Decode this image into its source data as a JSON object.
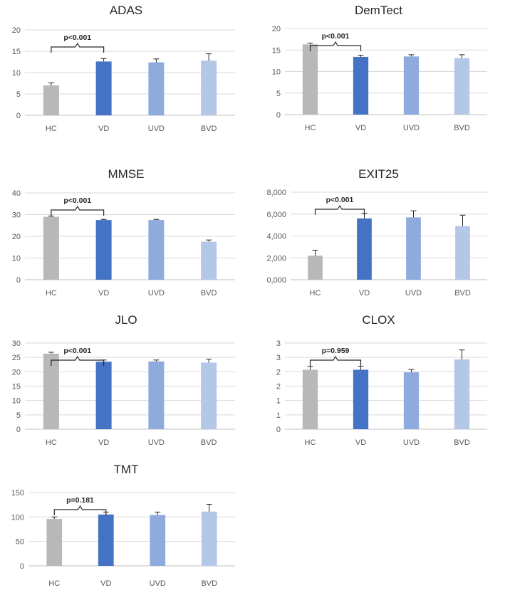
{
  "colors": {
    "HC": "#b8b8b8",
    "VD": "#4472c4",
    "UVD": "#8faadc",
    "BVD": "#b4c7e7"
  },
  "chart_data": [
    {
      "id": "adas",
      "type": "bar",
      "title": "ADAS",
      "categories": [
        "HC",
        "VD",
        "UVD",
        "BVD"
      ],
      "values": [
        7,
        12.6,
        12.4,
        12.8
      ],
      "errors": [
        0.6,
        0.7,
        0.8,
        1.6
      ],
      "ylim": [
        0,
        20
      ],
      "yticks": [
        "0",
        "5",
        "10",
        "15",
        "20"
      ],
      "annotation": "p<0.001",
      "grid": true,
      "xlabel": "",
      "ylabel": ""
    },
    {
      "id": "demtect",
      "type": "bar",
      "title": "DemTect",
      "categories": [
        "HC",
        "VD",
        "UVD",
        "BVD"
      ],
      "values": [
        16.3,
        13.4,
        13.5,
        13.1
      ],
      "errors": [
        0.3,
        0.4,
        0.4,
        0.8
      ],
      "ylim": [
        0,
        20
      ],
      "yticks": [
        "0",
        "5",
        "10",
        "15",
        "20"
      ],
      "annotation": "p<0.001",
      "grid": true,
      "xlabel": "",
      "ylabel": ""
    },
    {
      "id": "mmse",
      "type": "bar",
      "title": "MMSE",
      "categories": [
        "HC",
        "VD",
        "UVD",
        "BVD"
      ],
      "values": [
        29,
        27.5,
        27.5,
        17.5
      ],
      "errors": [
        0.3,
        0.3,
        0.3,
        0.8
      ],
      "ylim": [
        0,
        40
      ],
      "yticks": [
        "0",
        "10",
        "20",
        "30",
        "40"
      ],
      "annotation": "p<0.001",
      "grid": true,
      "xlabel": "",
      "ylabel": ""
    },
    {
      "id": "exit25",
      "type": "bar",
      "title": "EXIT25",
      "categories": [
        "HC",
        "VD",
        "UVD",
        "BVD"
      ],
      "values": [
        2.2,
        5.6,
        5.7,
        4.9
      ],
      "errors": [
        0.5,
        0.45,
        0.6,
        1.0
      ],
      "ylim": [
        0,
        8
      ],
      "yticks": [
        "0,000",
        "2,000",
        "4,000",
        "6,000",
        "8,000"
      ],
      "annotation": "p<0.001",
      "grid": true,
      "xlabel": "",
      "ylabel": ""
    },
    {
      "id": "jlo",
      "type": "bar",
      "title": "JLO",
      "categories": [
        "HC",
        "VD",
        "UVD",
        "BVD"
      ],
      "values": [
        26.3,
        23.5,
        23.6,
        23.2
      ],
      "errors": [
        0.5,
        0.6,
        0.5,
        1.2
      ],
      "ylim": [
        0,
        30
      ],
      "yticks": [
        "0",
        "5",
        "10",
        "15",
        "20",
        "25",
        "30"
      ],
      "annotation": "p<0.001",
      "grid": true,
      "xlabel": "",
      "ylabel": ""
    },
    {
      "id": "clox",
      "type": "bar",
      "title": "CLOX",
      "categories": [
        "HC",
        "VD",
        "UVD",
        "BVD"
      ],
      "values": [
        2.07,
        2.07,
        1.98,
        2.43
      ],
      "errors": [
        0.12,
        0.12,
        0.1,
        0.33
      ],
      "ylim": [
        0,
        3
      ],
      "yticks": [
        "0",
        "1",
        "1",
        "2",
        "2",
        "3",
        "3"
      ],
      "annotation": "p=0.959",
      "grid": true,
      "xlabel": "",
      "ylabel": ""
    },
    {
      "id": "tmt",
      "type": "bar",
      "title": "TMT",
      "categories": [
        "HC",
        "VD",
        "UVD",
        "BVD"
      ],
      "values": [
        96,
        105,
        104,
        111
      ],
      "errors": [
        4,
        5,
        6,
        15
      ],
      "ylim": [
        0,
        150
      ],
      "yticks": [
        "0",
        "50",
        "100",
        "150"
      ],
      "annotation": "p=0.181",
      "grid": true,
      "xlabel": "",
      "ylabel": ""
    }
  ]
}
